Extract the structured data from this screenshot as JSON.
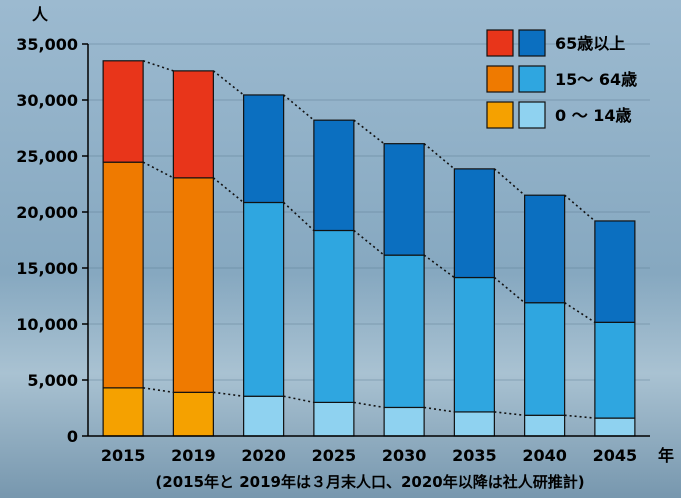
{
  "chart_data": {
    "type": "bar",
    "stacked": true,
    "y_unit_label": "人",
    "x_unit_label": "年",
    "note": "(2015年と 2019年は３月末人口、2020年以降は社人研推計)",
    "categories": [
      "2015",
      "2019",
      "2020",
      "2025",
      "2030",
      "2035",
      "2040",
      "2045"
    ],
    "y_ticks": [
      "0",
      "5,000",
      "10,000",
      "15,000",
      "20,000",
      "25,000",
      "30,000",
      "35,000"
    ],
    "ylim": [
      0,
      35000
    ],
    "grid": true,
    "legend_position": "top-right",
    "series": [
      {
        "name": "0 〜 14歳",
        "values": [
          4300,
          3900,
          3550,
          3000,
          2550,
          2150,
          1850,
          1600
        ]
      },
      {
        "name": "15〜 64歳",
        "values": [
          20150,
          19150,
          17300,
          15350,
          13600,
          12000,
          10050,
          8550
        ]
      },
      {
        "name": "65歳以上",
        "values": [
          9050,
          9550,
          9600,
          9850,
          9950,
          9700,
          9600,
          9050
        ]
      }
    ],
    "colors": {
      "actual": [
        "#f5a100",
        "#ef7a00",
        "#e8351a"
      ],
      "projected": [
        "#8fd2f0",
        "#2fa6e0",
        "#0b6fc0"
      ],
      "background_top": "#8fb0c8",
      "background_bottom": "#6a8fa8"
    }
  }
}
